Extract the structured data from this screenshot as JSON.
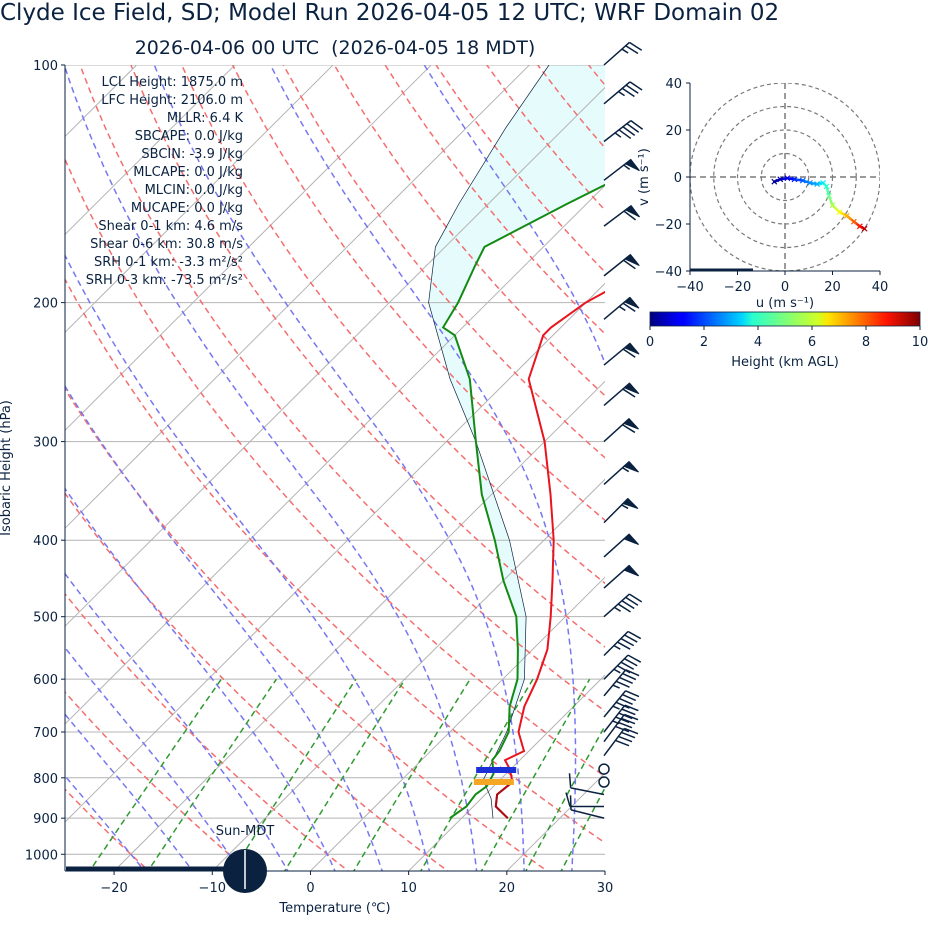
{
  "title": "Clyde Ice Field, SD; Model Run 2026-04-05 12 UTC; WRF Domain 02",
  "subtitle": "2026-04-06 00 UTC  (2026-04-05 18 MDT)",
  "colors": {
    "temperature": "#e8141e",
    "dewpoint": "#138a13",
    "dry_adiabat": "#f46e6e",
    "moist_adiabat": "#7777f0",
    "mixing_ratio": "#2f9a2f",
    "isotherm": "#b4b4b4",
    "cape_fill": "#e6fcfc",
    "barb": "#0a2240",
    "lcl_marker": "#1a2fd6",
    "lfc_marker": "#f5a623"
  },
  "chart_data": [
    {
      "type": "line",
      "chart": "skew-t",
      "xlabel": "Temperature (℃)",
      "ylabel": "Isobaric Height (hPa)",
      "xlim": [
        -25,
        30
      ],
      "ylim": [
        1050,
        100
      ],
      "y_scale": "log",
      "grid": true,
      "xticks": [
        "−20",
        "−10",
        "0",
        "10",
        "20",
        "30"
      ],
      "xtick_values": [
        -20,
        -10,
        0,
        10,
        20,
        30
      ],
      "yticks": [
        "100",
        "200",
        "300",
        "400",
        "500",
        "600",
        "700",
        "800",
        "900",
        "1000"
      ],
      "ytick_values": [
        100,
        200,
        300,
        400,
        500,
        600,
        700,
        800,
        900,
        1000
      ],
      "series": [
        {
          "role": "temperature",
          "points": [
            [
              900,
              14.7
            ],
            [
              870,
              12.3
            ],
            [
              840,
              11.2
            ],
            [
              810,
              11.5
            ],
            [
              780,
              9.9
            ],
            [
              760,
              8.5
            ],
            [
              740,
              9.5
            ],
            [
              700,
              7.0
            ],
            [
              650,
              5.0
            ],
            [
              600,
              3.5
            ],
            [
              550,
              1.5
            ],
            [
              500,
              -1.5
            ],
            [
              450,
              -5.0
            ],
            [
              400,
              -9.0
            ],
            [
              350,
              -14.0
            ],
            [
              300,
              -20.0
            ],
            [
              250,
              -28.0
            ],
            [
              220,
              -31.0
            ],
            [
              215,
              -31.0
            ],
            [
              200,
              -30.0
            ],
            [
              180,
              -27.0
            ],
            [
              160,
              -21.0
            ],
            [
              140,
              -14.0
            ],
            [
              120,
              -12.0
            ],
            [
              110,
              -12.0
            ],
            [
              100,
              -11.0
            ]
          ]
        },
        {
          "role": "dewpoint",
          "points": [
            [
              900,
              8.8
            ],
            [
              870,
              9.3
            ],
            [
              840,
              9.0
            ],
            [
              820,
              9.3
            ],
            [
              790,
              8.7
            ],
            [
              760,
              7.2
            ],
            [
              740,
              7.0
            ],
            [
              700,
              6.0
            ],
            [
              650,
              3.5
            ],
            [
              600,
              1.5
            ],
            [
              550,
              -1.5
            ],
            [
              500,
              -5.0
            ],
            [
              450,
              -10.0
            ],
            [
              400,
              -15.0
            ],
            [
              350,
              -21.0
            ],
            [
              300,
              -27.0
            ],
            [
              250,
              -34.0
            ],
            [
              220,
              -40.0
            ],
            [
              215,
              -42.0
            ],
            [
              200,
              -43.0
            ],
            [
              180,
              -45.0
            ],
            [
              170,
              -46.0
            ],
            [
              150,
              -42.0
            ],
            [
              130,
              -37.0
            ],
            [
              115,
              -33.0
            ],
            [
              100,
              -29.0
            ]
          ]
        },
        {
          "role": "parcel",
          "points": [
            [
              900,
              13.2
            ],
            [
              850,
              11.0
            ],
            [
              805,
              8.3
            ],
            [
              700,
              5.8
            ],
            [
              600,
              2.2
            ],
            [
              500,
              -4.0
            ],
            [
              400,
              -13.5
            ],
            [
              300,
              -27.0
            ],
            [
              250,
              -36.0
            ],
            [
              200,
              -46.0
            ],
            [
              170,
              -51.0
            ],
            [
              150,
              -53.0
            ],
            [
              120,
              -56.0
            ],
            [
              100,
              -58.0
            ]
          ]
        }
      ],
      "lcl_pressure": 782,
      "lfc_pressure": 810,
      "stats": [
        "LCL Height: 1875.0 m",
        "LFC Height: 2106.0 m",
        "MLLR: 6.4 K",
        "SBCAPE: 0.0 J/kg",
        "SBCIN: -3.9 J/kg",
        "MLCAPE: 0.0 J/kg",
        "MLCIN: 0.0 J/kg",
        "MUCAPE: 0.0 J/kg",
        "Shear 0-1 km: 4.6 m/s",
        "Shear 0-6 km: 30.8 m/s",
        "SRH 0-1 km: -3.3 m²/s²",
        "SRH 0-3 km: -73.5 m²/s²"
      ],
      "sun_label": "Sun-MDT",
      "wind_barbs": [
        {
          "p": 900,
          "u": 4,
          "v": -1
        },
        {
          "p": 870,
          "u": 4,
          "v": 0
        },
        {
          "p": 840,
          "u": 5,
          "v": -1
        },
        {
          "p": 810,
          "u": 1,
          "v": 0
        },
        {
          "p": 780,
          "u": 1,
          "v": 0
        },
        {
          "p": 750,
          "u": -12,
          "v": -16
        },
        {
          "p": 720,
          "u": -12,
          "v": -16
        },
        {
          "p": 700,
          "u": -14,
          "v": -18
        },
        {
          "p": 670,
          "u": -14,
          "v": -17
        },
        {
          "p": 630,
          "u": -15,
          "v": -18
        },
        {
          "p": 600,
          "u": -16,
          "v": -16
        },
        {
          "p": 560,
          "u": -17,
          "v": -17
        },
        {
          "p": 500,
          "u": -18,
          "v": -16
        },
        {
          "p": 460,
          "u": -19,
          "v": -17
        },
        {
          "p": 420,
          "u": -20,
          "v": -18
        },
        {
          "p": 380,
          "u": -20,
          "v": -20
        },
        {
          "p": 340,
          "u": -21,
          "v": -19
        },
        {
          "p": 300,
          "u": -22,
          "v": -20
        },
        {
          "p": 270,
          "u": -23,
          "v": -20
        },
        {
          "p": 240,
          "u": -24,
          "v": -20
        },
        {
          "p": 210,
          "u": -25,
          "v": -21
        },
        {
          "p": 185,
          "u": -25,
          "v": -20
        },
        {
          "p": 160,
          "u": -24,
          "v": -18
        },
        {
          "p": 140,
          "u": -22,
          "v": -17
        },
        {
          "p": 125,
          "u": -18,
          "v": -14
        },
        {
          "p": 112,
          "u": -13,
          "v": -11
        },
        {
          "p": 100,
          "u": -9,
          "v": -8
        }
      ]
    },
    {
      "type": "line",
      "chart": "hodograph",
      "xlabel": "u (m s⁻¹)",
      "ylabel": "v (m s⁻¹)",
      "xlim": [
        -40,
        40
      ],
      "ylim": [
        -40,
        40
      ],
      "xticks": [
        "−40",
        "−20",
        "0",
        "20",
        "40"
      ],
      "xtick_values": [
        -40,
        -20,
        0,
        20,
        40
      ],
      "yticks": [
        "40",
        "20",
        "0",
        "−20",
        "−40"
      ],
      "ytick_values": [
        40,
        20,
        0,
        -20,
        -40
      ],
      "rings": [
        10,
        20,
        30,
        40
      ],
      "points": [
        {
          "u": -4.5,
          "v": -2.0,
          "h": 0.2
        },
        {
          "u": -2.0,
          "v": -1.0,
          "h": 0.5
        },
        {
          "u": 1.0,
          "v": -0.5,
          "h": 1.0
        },
        {
          "u": 4.0,
          "v": -1.0,
          "h": 1.6
        },
        {
          "u": 7.5,
          "v": -1.5,
          "h": 2.2
        },
        {
          "u": 10.5,
          "v": -2.5,
          "h": 2.6
        },
        {
          "u": 13.5,
          "v": -3.0,
          "h": 3.0
        },
        {
          "u": 16.0,
          "v": -2.5,
          "h": 3.6
        },
        {
          "u": 17.5,
          "v": -4.0,
          "h": 4.2
        },
        {
          "u": 18.5,
          "v": -8.0,
          "h": 4.8
        },
        {
          "u": 20.0,
          "v": -12.0,
          "h": 5.4
        },
        {
          "u": 23.0,
          "v": -15.0,
          "h": 6.2
        },
        {
          "u": 26.0,
          "v": -16.5,
          "h": 7.0
        },
        {
          "u": 29.0,
          "v": -19.0,
          "h": 7.8
        },
        {
          "u": 31.5,
          "v": -21.0,
          "h": 8.6
        },
        {
          "u": 33.5,
          "v": -22.0,
          "h": 9.4
        }
      ],
      "colorbar": {
        "label": "Height (km AGL)",
        "ticks": [
          "0",
          "2",
          "4",
          "6",
          "8",
          "10"
        ],
        "tick_values": [
          0,
          2,
          4,
          6,
          8,
          10
        ],
        "range": [
          0,
          10
        ]
      }
    }
  ]
}
